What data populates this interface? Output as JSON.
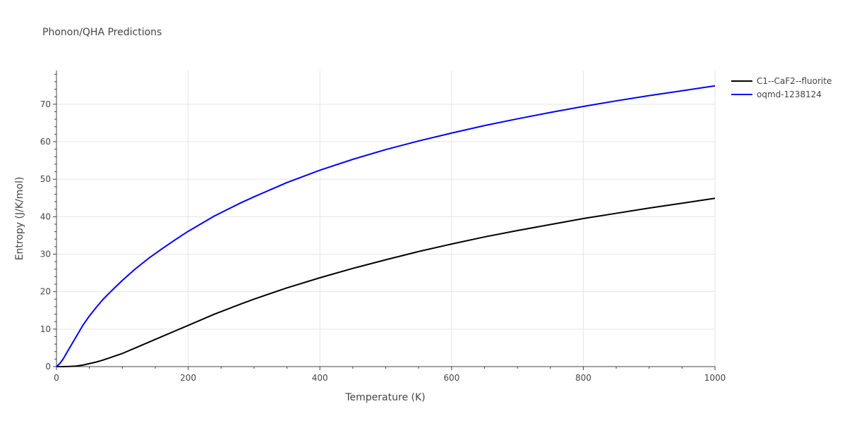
{
  "chart_data": {
    "type": "line",
    "title": "Phonon/QHA Predictions",
    "xlabel": "Temperature (K)",
    "ylabel": "Entropy (J/K/mol)",
    "xlim": [
      0,
      1000
    ],
    "ylim": [
      0,
      79
    ],
    "xticks": [
      0,
      200,
      400,
      600,
      800,
      1000
    ],
    "yticks": [
      0,
      10,
      20,
      30,
      40,
      50,
      60,
      70
    ],
    "grid": true,
    "legend_position": "top-right",
    "series": [
      {
        "name": "C1--CaF2--fluorite",
        "color": "#000000",
        "x": [
          0,
          10,
          20,
          30,
          40,
          50,
          60,
          70,
          80,
          90,
          100,
          120,
          140,
          160,
          180,
          200,
          240,
          280,
          300,
          350,
          400,
          450,
          500,
          550,
          600,
          650,
          700,
          750,
          800,
          850,
          900,
          950,
          1000
        ],
        "y": [
          0,
          0,
          0.05,
          0.15,
          0.4,
          0.8,
          1.2,
          1.7,
          2.3,
          2.9,
          3.5,
          5.0,
          6.5,
          8.0,
          9.5,
          11.0,
          14.0,
          16.7,
          18.0,
          21.0,
          23.7,
          26.2,
          28.5,
          30.7,
          32.7,
          34.6,
          36.3,
          37.9,
          39.5,
          40.9,
          42.3,
          43.6,
          44.9
        ]
      },
      {
        "name": "oqmd-1238124",
        "color": "#0000ff",
        "x": [
          0,
          5,
          10,
          20,
          30,
          40,
          50,
          60,
          70,
          80,
          90,
          100,
          120,
          140,
          160,
          180,
          200,
          240,
          280,
          300,
          350,
          400,
          450,
          500,
          550,
          600,
          650,
          700,
          750,
          800,
          850,
          900,
          950,
          1000
        ],
        "y": [
          0,
          0.8,
          2.0,
          5.0,
          8.0,
          11.0,
          13.5,
          15.7,
          17.8,
          19.6,
          21.3,
          23.0,
          26.1,
          28.9,
          31.4,
          33.8,
          36.1,
          40.2,
          43.7,
          45.3,
          49.1,
          52.4,
          55.3,
          57.9,
          60.2,
          62.3,
          64.3,
          66.1,
          67.8,
          69.4,
          70.9,
          72.3,
          73.6,
          74.9
        ]
      }
    ]
  }
}
